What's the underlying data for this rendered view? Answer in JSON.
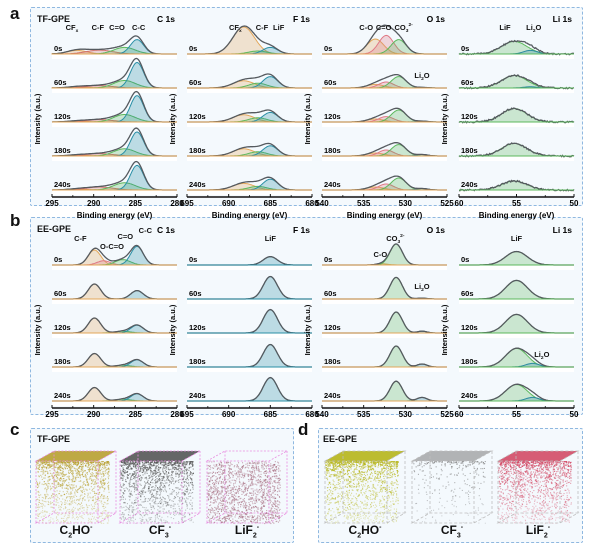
{
  "panels": {
    "a": {
      "letter": "a",
      "sample": "TF-GPE"
    },
    "b": {
      "letter": "b",
      "sample": "EE-GPE"
    },
    "c": {
      "letter": "c",
      "sample": "TF-GPE"
    },
    "d": {
      "letter": "d",
      "sample": "EE-GPE"
    }
  },
  "axis_text": {
    "ylabel": "Intensity (a.u.)",
    "xlabel": "Binding energy (eV)"
  },
  "times": [
    "0s",
    "60s",
    "120s",
    "180s",
    "240s"
  ],
  "colors": {
    "envelope": "#555a5f",
    "baseline": "#c9c9c9",
    "C-C": "#2a8fa6",
    "LiF_F": "#2a8fa6",
    "orange": "#e3a75a",
    "pink": "#e07a86",
    "red": "#d0706a",
    "green": "#5cb85c",
    "teal": "#2b8aa0",
    "box_border": "#8fb8e0",
    "box_fill": "#f4f9fd"
  },
  "chart_data": [
    {
      "type": "area",
      "id": "a-C1s",
      "title": "C 1s",
      "sample": "TF-GPE",
      "xlabel": "Binding energy (eV)",
      "ylabel": "Intensity (a.u.)",
      "xlim": [
        295,
        280
      ],
      "xticks": [
        295,
        290,
        285,
        280
      ],
      "labels": [
        {
          "text": "CF",
          "sub": "x",
          "x": 292.6
        },
        {
          "text": "C-F",
          "x": 289.5
        },
        {
          "text": "C=O",
          "x": 287.2
        },
        {
          "text": "C-C",
          "x": 284.6
        }
      ],
      "series": [
        {
          "name": "CFx",
          "color": "orange",
          "center": 292.0,
          "width": 1.2,
          "amps": [
            0.12,
            0.04,
            0.03,
            0.03,
            0.03
          ]
        },
        {
          "name": "C-F",
          "color": "red",
          "center": 289.3,
          "width": 1.6,
          "amps": [
            0.13,
            0.08,
            0.08,
            0.08,
            0.1
          ]
        },
        {
          "name": "C=O",
          "color": "green",
          "center": 286.3,
          "width": 1.3,
          "amps": [
            0.22,
            0.25,
            0.25,
            0.24,
            0.24
          ]
        },
        {
          "name": "C-C",
          "color": "C-C",
          "center": 284.8,
          "width": 0.8,
          "amps": [
            0.48,
            0.85,
            0.88,
            0.8,
            0.82
          ]
        }
      ]
    },
    {
      "type": "area",
      "id": "a-F1s",
      "title": "F 1s",
      "sample": "TF-GPE",
      "xlabel": "Binding energy (eV)",
      "ylabel": "Intensity (a.u.)",
      "xlim": [
        695,
        680
      ],
      "xticks": [
        695,
        690,
        685,
        680
      ],
      "labels": [
        {
          "text": "CF",
          "sub": "x",
          "x": 689.2
        },
        {
          "text": "C-F",
          "x": 686.0
        },
        {
          "text": "LiF",
          "x": 684.0
        }
      ],
      "series": [
        {
          "name": "CFx",
          "color": "orange",
          "center": 688.2,
          "width": 1.3,
          "amps": [
            0.9,
            0.24,
            0.24,
            0.24,
            0.22
          ]
        },
        {
          "name": "C-F",
          "color": "green",
          "center": 686.5,
          "width": 1.1,
          "amps": [
            0.1,
            0.16,
            0.14,
            0.14,
            0.12
          ]
        },
        {
          "name": "LiF",
          "color": "LiF_F",
          "center": 685.0,
          "width": 0.9,
          "amps": [
            0.22,
            0.38,
            0.32,
            0.34,
            0.36
          ]
        }
      ]
    },
    {
      "type": "area",
      "id": "a-O1s",
      "title": "O 1s",
      "sample": "TF-GPE",
      "xlabel": "Binding energy (eV)",
      "ylabel": "Intensity (a.u.)",
      "xlim": [
        540,
        525
      ],
      "xticks": [
        540,
        535,
        530,
        525
      ],
      "labels": [
        {
          "text": "C-O",
          "x": 534.7
        },
        {
          "text": "C=O",
          "x": 532.6
        },
        {
          "text": "CO",
          "sub": "3",
          "sup": "2-",
          "x": 530.2
        },
        {
          "text": "Li",
          "sub": "2",
          "tail": "O",
          "x": 528.0,
          "row": 1
        }
      ],
      "series": [
        {
          "name": "C-O",
          "color": "orange",
          "center": 533.6,
          "width": 1.0,
          "amps": [
            0.5,
            0.12,
            0.1,
            0.1,
            0.1
          ]
        },
        {
          "name": "C=O",
          "color": "pink",
          "center": 532.3,
          "width": 0.9,
          "amps": [
            0.62,
            0.2,
            0.18,
            0.2,
            0.2
          ]
        },
        {
          "name": "CO3",
          "color": "green",
          "center": 530.8,
          "width": 0.9,
          "amps": [
            0.48,
            0.38,
            0.4,
            0.38,
            0.4
          ]
        },
        {
          "name": "Li2O",
          "color": "teal",
          "center": 528.0,
          "width": 0.7,
          "amps": [
            0.0,
            0.02,
            0.03,
            0.05,
            0.05
          ]
        }
      ]
    },
    {
      "type": "area",
      "id": "a-Li1s",
      "title": "Li 1s",
      "sample": "TF-GPE",
      "xlabel": "Binding energy (eV)",
      "ylabel": "Intensity (a.u.)",
      "xlim": [
        60,
        50
      ],
      "xticks": [
        60,
        55,
        50
      ],
      "labels": [
        {
          "text": "LiF",
          "x": 56.0
        },
        {
          "text": "Li",
          "sub": "2",
          "tail": "O",
          "x": 53.5
        }
      ],
      "noisy": true,
      "series": [
        {
          "name": "LiF",
          "color": "green",
          "center": 55.2,
          "width": 1.1,
          "amps": [
            0.42,
            0.42,
            0.45,
            0.42,
            0.3
          ]
        },
        {
          "name": "Li2O",
          "color": "teal",
          "center": 53.8,
          "width": 0.6,
          "amps": [
            0.12,
            0.04,
            0.0,
            0.0,
            0.0
          ]
        }
      ]
    },
    {
      "type": "area",
      "id": "b-C1s",
      "title": "C 1s",
      "sample": "EE-GPE",
      "xlabel": "Binding energy (eV)",
      "ylabel": "Intensity (a.u.)",
      "xlim": [
        295,
        280
      ],
      "xticks": [
        295,
        290,
        285,
        280
      ],
      "labels": [
        {
          "text": "C-F",
          "x": 291.6
        },
        {
          "text": "O-C=O",
          "x": 287.8,
          "dy": 8
        },
        {
          "text": "C=O",
          "x": 286.2,
          "dy": -2
        },
        {
          "text": "C-C",
          "x": 283.8,
          "dy": -8
        }
      ],
      "series": [
        {
          "name": "C-F",
          "color": "orange",
          "center": 289.9,
          "width": 0.75,
          "amps": [
            0.5,
            0.5,
            0.5,
            0.45,
            0.45
          ]
        },
        {
          "name": "O-C=O",
          "color": "pink",
          "center": 288.8,
          "width": 0.8,
          "amps": [
            0.14,
            0.0,
            0.0,
            0.0,
            0.0
          ]
        },
        {
          "name": "C=O",
          "color": "green",
          "center": 286.5,
          "width": 0.9,
          "amps": [
            0.18,
            0.0,
            0.06,
            0.06,
            0.06
          ]
        },
        {
          "name": "C-C",
          "color": "C-C",
          "center": 284.8,
          "width": 0.75,
          "amps": [
            0.62,
            0.28,
            0.26,
            0.24,
            0.24
          ]
        }
      ]
    },
    {
      "type": "area",
      "id": "b-F1s",
      "title": "F 1s",
      "sample": "EE-GPE",
      "xlabel": "Binding energy (eV)",
      "ylabel": "Intensity (a.u.)",
      "xlim": [
        695,
        680
      ],
      "xticks": [
        695,
        690,
        685,
        680
      ],
      "labels": [
        {
          "text": "LiF",
          "x": 685.0
        }
      ],
      "series": [
        {
          "name": "LiF",
          "color": "LiF_F",
          "center": 685.0,
          "width": 0.85,
          "amps": [
            0.28,
            0.75,
            0.78,
            0.75,
            0.78
          ]
        }
      ]
    },
    {
      "type": "area",
      "id": "b-O1s",
      "title": "O 1s",
      "sample": "EE-GPE",
      "xlabel": "Binding energy (eV)",
      "ylabel": "Intensity (a.u.)",
      "xlim": [
        540,
        525
      ],
      "xticks": [
        540,
        535,
        530,
        525
      ],
      "labels": [
        {
          "text": "C-O",
          "x": 533.0,
          "dy": 16
        },
        {
          "text": "CO",
          "sub": "3",
          "sup": "2-",
          "x": 531.2
        },
        {
          "text": "Li",
          "sub": "2",
          "tail": "O",
          "x": 528.0,
          "row": 1
        }
      ],
      "series": [
        {
          "name": "C-O",
          "color": "orange",
          "center": 532.8,
          "width": 0.7,
          "amps": [
            0.04,
            0.0,
            0.0,
            0.0,
            0.0
          ]
        },
        {
          "name": "CO3",
          "color": "green",
          "center": 531.1,
          "width": 0.75,
          "amps": [
            0.7,
            0.72,
            0.7,
            0.7,
            0.66
          ]
        },
        {
          "name": "Li2O",
          "color": "teal",
          "center": 528.0,
          "width": 0.6,
          "amps": [
            0.0,
            0.03,
            0.06,
            0.1,
            0.12
          ]
        }
      ]
    },
    {
      "type": "area",
      "id": "b-Li1s",
      "title": "Li 1s",
      "sample": "EE-GPE",
      "xlabel": "Binding energy (eV)",
      "ylabel": "Intensity (a.u.)",
      "xlim": [
        60,
        50
      ],
      "xticks": [
        60,
        55,
        50
      ],
      "labels": [
        {
          "text": "LiF",
          "x": 55.0
        },
        {
          "text": "Li",
          "sub": "2",
          "tail": "O",
          "x": 52.8,
          "row": 3
        }
      ],
      "series": [
        {
          "name": "LiF",
          "color": "green",
          "center": 55.0,
          "width": 0.95,
          "amps": [
            0.45,
            0.62,
            0.62,
            0.62,
            0.55
          ]
        },
        {
          "name": "Li2O",
          "color": "teal",
          "center": 53.6,
          "width": 0.6,
          "amps": [
            0.0,
            0.0,
            0.0,
            0.12,
            0.12
          ]
        }
      ]
    }
  ],
  "tof_sims": {
    "c": [
      {
        "species": "C",
        "sub": "2",
        "tail": "HO",
        "sup": "-",
        "color": "#b8a030",
        "fill": "dense-top"
      },
      {
        "species": "CF",
        "sub": "3",
        "tail": "",
        "sup": "-",
        "color": "#555555",
        "fill": "dense-top"
      },
      {
        "species": "LiF",
        "sub": "2",
        "tail": "",
        "sup": "-",
        "color": "#a3667a",
        "fill": "full"
      }
    ],
    "d": [
      {
        "species": "C",
        "sub": "2",
        "tail": "HO",
        "sup": "-",
        "color": "#b6b51a",
        "fill": "gradient"
      },
      {
        "species": "CF",
        "sub": "3",
        "tail": "",
        "sup": "-",
        "color": "#7a7a7a",
        "fill": "sparse"
      },
      {
        "species": "LiF",
        "sub": "2",
        "tail": "",
        "sup": "-",
        "color": "#d34a66",
        "fill": "gradient"
      }
    ]
  }
}
